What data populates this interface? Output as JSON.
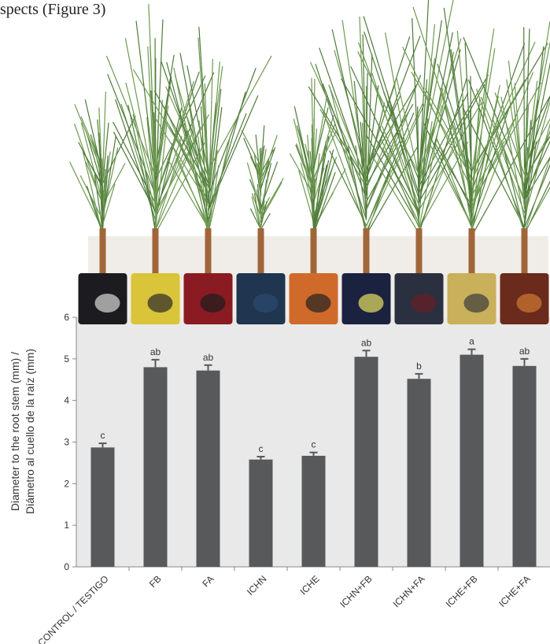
{
  "intro_text": "spects (Figure 3)",
  "chart_data": {
    "type": "bar",
    "y_label": [
      "Diameter to the root stem (mm) /",
      "Diámetro al cuello de la raíz (mm)"
    ],
    "categories": [
      "CONTROL / TESTIGO",
      "FB",
      "FA",
      "ICHN",
      "ICHE",
      "ICHN+FB",
      "ICHN+FA",
      "ICHE+FB",
      "ICHE+FA"
    ],
    "values": [
      2.87,
      4.8,
      4.72,
      2.58,
      2.67,
      5.05,
      4.52,
      5.1,
      4.83
    ],
    "errors": [
      0.1,
      0.18,
      0.13,
      0.07,
      0.08,
      0.15,
      0.12,
      0.13,
      0.17
    ],
    "letters": [
      "c",
      "ab",
      "ab",
      "c",
      "c",
      "ab",
      "b",
      "a",
      "ab"
    ],
    "color": "#58595b",
    "ylim": [
      0,
      6
    ],
    "yticks": [
      0,
      1,
      2,
      3,
      4,
      5,
      6
    ]
  }
}
